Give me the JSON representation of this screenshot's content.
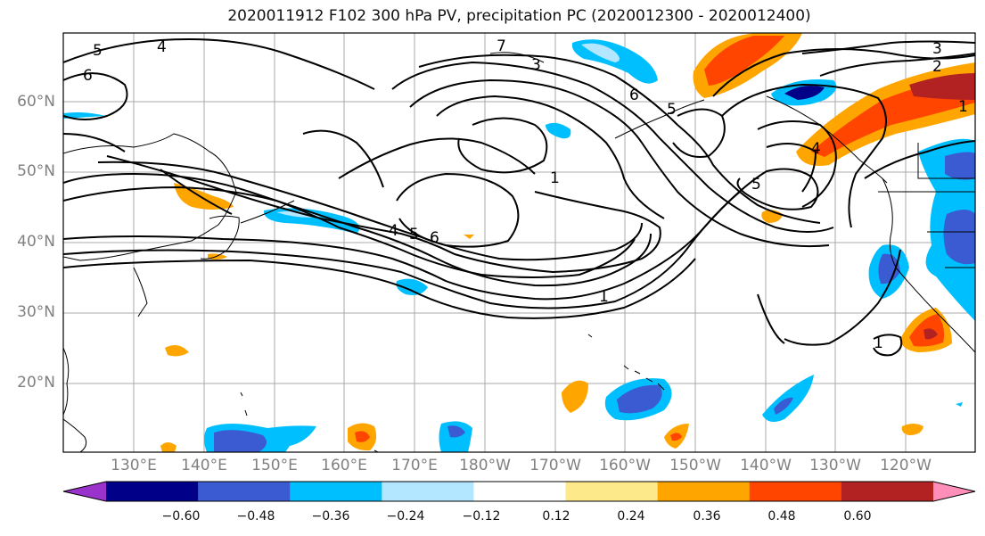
{
  "title": "2020011912 F102 300 hPa PV, precipitation PC (2020012300 - 2020012400)",
  "lat_labels": [
    "60°N",
    "50°N",
    "40°N",
    "30°N",
    "20°N"
  ],
  "lon_labels": [
    "130°E",
    "140°E",
    "150°E",
    "160°E",
    "170°E",
    "180°W",
    "170°W",
    "160°W",
    "150°W",
    "140°W",
    "130°W",
    "120°W"
  ],
  "contour_labels": [
    "5",
    "6",
    "4",
    "7",
    "3",
    "1",
    "6",
    "5",
    "4",
    "5",
    "6",
    "5",
    "1",
    "2",
    "3",
    "1",
    "4",
    "1"
  ],
  "colorbar": {
    "colors": [
      "#9933cc",
      "#000088",
      "#3a5bd1",
      "#00bfff",
      "#b3e6ff",
      "#ffffff",
      "#fde98a",
      "#ffa500",
      "#ff4500",
      "#b22222",
      "#ff8fb8"
    ],
    "labels": [
      "−0.60",
      "−0.48",
      "−0.36",
      "−0.24",
      "−0.12",
      "0.12",
      "0.24",
      "0.36",
      "0.48",
      "0.60"
    ]
  }
}
